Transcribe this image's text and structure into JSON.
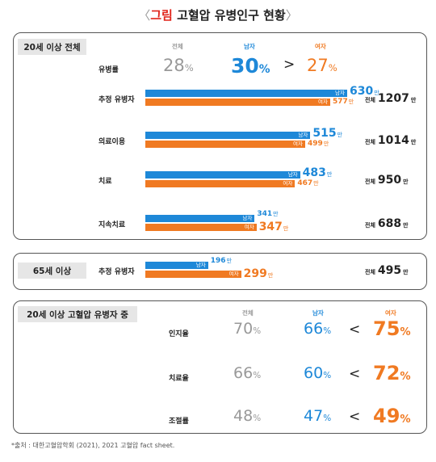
{
  "title": {
    "open": "〈",
    "red": "그림",
    "rest": " 고혈압 유병인구 현황",
    "close": "〉"
  },
  "section1": {
    "tag": "20세 이상 전체",
    "headers": {
      "total": "전체",
      "male": "남자",
      "female": "여자"
    },
    "prevalence": {
      "label": "유병률",
      "total": "28",
      "male": "30",
      "female": "27",
      "compare": ">",
      "unit": "%"
    },
    "rows": [
      {
        "label": "추정 유병자",
        "male": 630,
        "female": 577,
        "total": 1207
      },
      {
        "label": "의료이용",
        "male": 515,
        "female": 499,
        "total": 1014
      },
      {
        "label": "치료",
        "male": 483,
        "female": 467,
        "total": 950
      },
      {
        "label": "지속치료",
        "male": 341,
        "female": 347,
        "total": 688
      }
    ]
  },
  "section2": {
    "tag": "65세 이상",
    "row": {
      "label": "추정 유병자",
      "male": 196,
      "female": 299,
      "total": 495
    }
  },
  "bar_labels": {
    "male": "남자",
    "female": "여자",
    "total_prefix": "전체",
    "unit": "만"
  },
  "section3": {
    "tag": "20세 이상 고혈압 유병자 중",
    "headers": {
      "total": "전체",
      "male": "남자",
      "female": "여자"
    },
    "rows": [
      {
        "label": "인지율",
        "total": "70",
        "male": "66",
        "female": "75",
        "compare": "<"
      },
      {
        "label": "치료율",
        "total": "66",
        "male": "60",
        "female": "72",
        "compare": "<"
      },
      {
        "label": "조절률",
        "total": "48",
        "male": "47",
        "female": "49",
        "compare": "<"
      }
    ],
    "unit": "%"
  },
  "source": "*출처 : 대한고혈압학회 (2021), 2021 고혈압 fact sheet.",
  "colors": {
    "male": "#1e88d8",
    "female": "#f07a22",
    "total": "#999999"
  },
  "chart_data": {
    "type": "bar",
    "categories": [
      "추정 유병자",
      "의료이용",
      "치료",
      "지속치료"
    ],
    "series": [
      {
        "name": "남자",
        "values": [
          630,
          515,
          483,
          341
        ]
      },
      {
        "name": "여자",
        "values": [
          577,
          499,
          467,
          347
        ]
      }
    ],
    "totals": [
      1207,
      1014,
      950,
      688
    ],
    "unit": "만"
  }
}
